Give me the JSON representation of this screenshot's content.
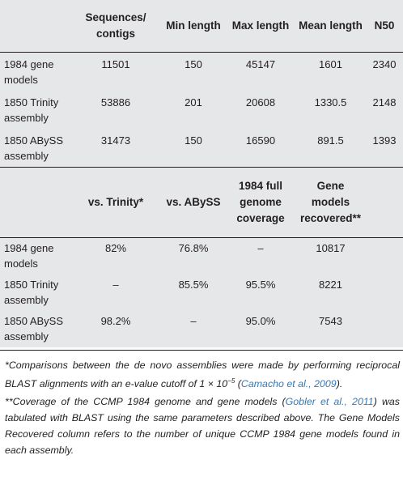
{
  "table1": {
    "headers": [
      "",
      "Sequences/ contigs",
      "Min length",
      "Max length",
      "Mean length",
      "N50"
    ],
    "rows": [
      {
        "label": "1984 gene models",
        "label_l1": "1984 gene",
        "label_l2": "models",
        "cells": [
          "11501",
          "150",
          "45147",
          "1601",
          "2340"
        ]
      },
      {
        "label": "1850 Trinity assembly",
        "label_l1": "1850 Trinity",
        "label_l2": "assembly",
        "cells": [
          "53886",
          "201",
          "20608",
          "1330.5",
          "2148"
        ]
      },
      {
        "label": "1850 ABySS assembly",
        "label_l1": "1850 ABySS",
        "label_l2": "assembly",
        "cells": [
          "31473",
          "150",
          "16590",
          "891.5",
          "1393"
        ]
      }
    ]
  },
  "table2": {
    "headers": [
      "",
      "vs. Trinity*",
      "vs. ABySS",
      "1984 full genome coverage",
      "Gene models recovered**",
      ""
    ],
    "header_lines": {
      "h1": [
        "vs. Trinity*"
      ],
      "h2": [
        "vs. ABySS"
      ],
      "h3": [
        "1984 full",
        "genome",
        "coverage"
      ],
      "h4": [
        "Gene",
        "models",
        "recovered**"
      ]
    },
    "rows": [
      {
        "label_l1": "1984 gene",
        "label_l2": "models",
        "cells": [
          "82%",
          "76.8%",
          "–",
          "10817",
          ""
        ]
      },
      {
        "label_l1": "1850 Trinity",
        "label_l2": "assembly",
        "cells": [
          "–",
          "85.5%",
          "95.5%",
          "8221",
          ""
        ]
      },
      {
        "label_l1": "1850 ABySS",
        "label_l2": "assembly",
        "cells": [
          "98.2%",
          "–",
          "95.0%",
          "7543",
          ""
        ]
      }
    ]
  },
  "footnotes": {
    "note1": {
      "text": "*Comparisons between the de novo assemblies were made by performing reciprocal BLAST alignments with an e-value cutoff of 1 × 10",
      "exponent": "−5",
      "open_paren": "(",
      "cite": "Camacho et al., 2009",
      "tail": ")."
    },
    "note2": {
      "lead": "**Coverage of the CCMP 1984 genome and gene models (",
      "cite": "Gobler et al., 2011",
      "tail": ") was tabulated with BLAST using the same parameters described above. The Gene Models Recovered column refers to the number of unique CCMP 1984 gene models found in each assembly."
    }
  },
  "colors": {
    "table_background": "#e6e7e8",
    "citation_link": "#3a78b0",
    "text": "#231f20"
  }
}
